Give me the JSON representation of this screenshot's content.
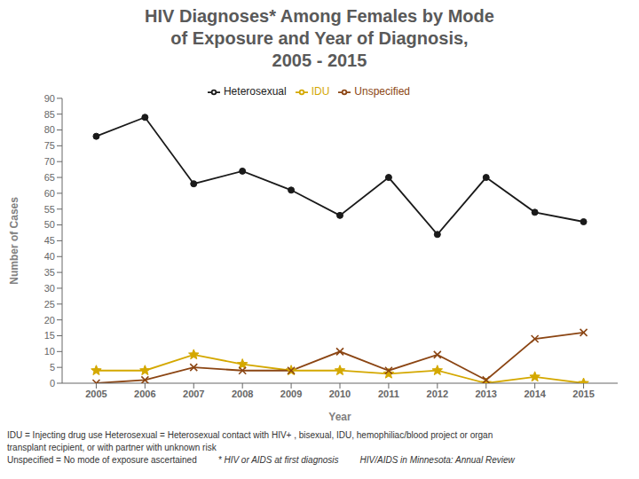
{
  "chart_data": {
    "type": "line",
    "title": "HIV Diagnoses* Among Females by Mode\nof Exposure and Year of Diagnosis,\n2005 - 2015",
    "x_label": "Year",
    "y_label": "Number of Cases",
    "x": [
      2005,
      2006,
      2007,
      2008,
      2009,
      2010,
      2011,
      2012,
      2013,
      2014,
      2015
    ],
    "series": [
      {
        "name": "IDU",
        "color": "#d4a800",
        "marker": "star",
        "line_style": "solid",
        "values": [
          4,
          4,
          9,
          6,
          4,
          4,
          3,
          4,
          0,
          2,
          0
        ]
      },
      {
        "name": "Heterosexual",
        "color": "#1a1a1a",
        "marker": "circle",
        "line_style": "solid",
        "values": [
          78,
          84,
          63,
          67,
          61,
          53,
          65,
          47,
          65,
          54,
          51
        ]
      },
      {
        "name": "Unspecified",
        "color": "#8B4513",
        "marker": "cross",
        "line_style": "solid",
        "values": [
          0,
          1,
          5,
          4,
          4,
          10,
          4,
          9,
          1,
          14,
          16
        ]
      }
    ],
    "xlim": [
      2004.3,
      2015.7
    ],
    "xticks": [
      2005,
      2006,
      2007,
      2008,
      2009,
      2010,
      2011,
      2012,
      2013,
      2014,
      2015
    ],
    "ylim": [
      0,
      90
    ],
    "yticks": [
      0,
      5,
      10,
      15,
      20,
      25,
      30,
      35,
      40,
      45,
      50,
      55,
      60,
      65,
      70,
      75,
      80,
      85,
      90
    ],
    "grid": false,
    "legend": "top",
    "annotations": [
      "IDU = Injecting drug use  Heterosexual = Heterosexual contact with HIV+ , bisexual, IDU,  hemophiliac/blood project or organ",
      "transplant recipient, or with partner with unknown risk",
      "Unspecified = No mode of exposure ascertained",
      "* HIV or AIDS at first diagnosis",
      "HIV/AIDS in Minnesota: Annual Review"
    ]
  }
}
